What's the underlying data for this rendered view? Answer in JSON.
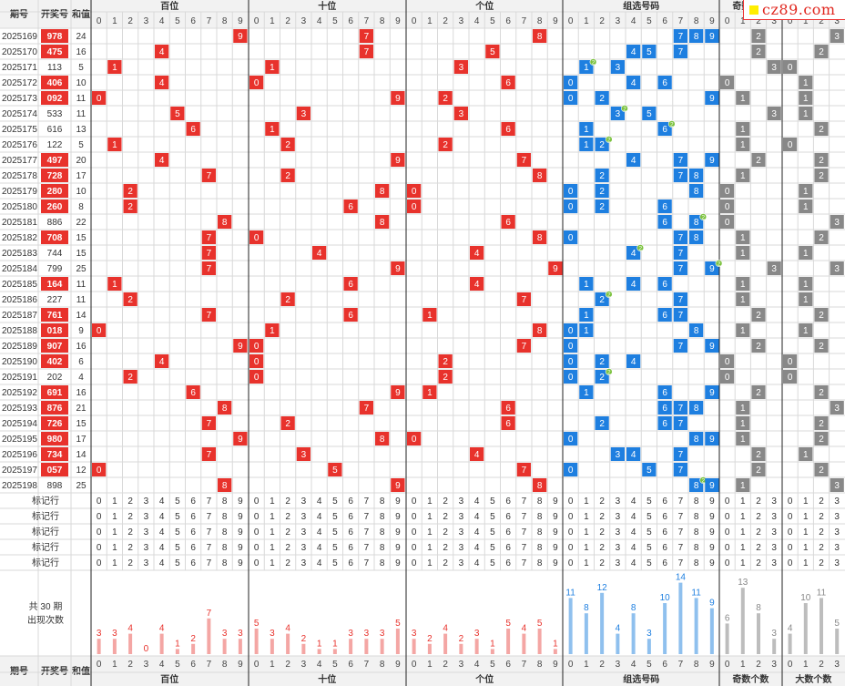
{
  "headers": {
    "issue": "期号",
    "number": "开奖号",
    "sum": "和值",
    "groups": [
      "百位",
      "十位",
      "个位",
      "组选号码",
      "奇数个数",
      "大数个数"
    ]
  },
  "digit_labels": [
    "0",
    "1",
    "2",
    "3",
    "4",
    "5",
    "6",
    "7",
    "8",
    "9"
  ],
  "count_labels": [
    "0",
    "1",
    "2",
    "3"
  ],
  "logo": {
    "text": "cz89.com"
  },
  "draws": [
    {
      "issue": "2025169",
      "number": "978",
      "sum": "24"
    },
    {
      "issue": "2025170",
      "number": "475",
      "sum": "16"
    },
    {
      "issue": "2025171",
      "number": "113",
      "sum": "5"
    },
    {
      "issue": "2025172",
      "number": "406",
      "sum": "10"
    },
    {
      "issue": "2025173",
      "number": "092",
      "sum": "11"
    },
    {
      "issue": "2025174",
      "number": "533",
      "sum": "11"
    },
    {
      "issue": "2025175",
      "number": "616",
      "sum": "13"
    },
    {
      "issue": "2025176",
      "number": "122",
      "sum": "5"
    },
    {
      "issue": "2025177",
      "number": "497",
      "sum": "20"
    },
    {
      "issue": "2025178",
      "number": "728",
      "sum": "17"
    },
    {
      "issue": "2025179",
      "number": "280",
      "sum": "10"
    },
    {
      "issue": "2025180",
      "number": "260",
      "sum": "8"
    },
    {
      "issue": "2025181",
      "number": "886",
      "sum": "22"
    },
    {
      "issue": "2025182",
      "number": "708",
      "sum": "15"
    },
    {
      "issue": "2025183",
      "number": "744",
      "sum": "15"
    },
    {
      "issue": "2025184",
      "number": "799",
      "sum": "25"
    },
    {
      "issue": "2025185",
      "number": "164",
      "sum": "11"
    },
    {
      "issue": "2025186",
      "number": "227",
      "sum": "11"
    },
    {
      "issue": "2025187",
      "number": "761",
      "sum": "14"
    },
    {
      "issue": "2025188",
      "number": "018",
      "sum": "9"
    },
    {
      "issue": "2025189",
      "number": "907",
      "sum": "16"
    },
    {
      "issue": "2025190",
      "number": "402",
      "sum": "6"
    },
    {
      "issue": "2025191",
      "number": "202",
      "sum": "4"
    },
    {
      "issue": "2025192",
      "number": "691",
      "sum": "16"
    },
    {
      "issue": "2025193",
      "number": "876",
      "sum": "21"
    },
    {
      "issue": "2025194",
      "number": "726",
      "sum": "15"
    },
    {
      "issue": "2025195",
      "number": "980",
      "sum": "17"
    },
    {
      "issue": "2025196",
      "number": "734",
      "sum": "14"
    },
    {
      "issue": "2025197",
      "number": "057",
      "sum": "12"
    },
    {
      "issue": "2025198",
      "number": "898",
      "sum": "25"
    }
  ],
  "marker_rows_label": "标记行",
  "marker_rows_count": 5,
  "stats_label_line1": "共 30 期",
  "stats_label_line2": "出现次数",
  "repeat_badge": "2",
  "stats": {
    "hundreds": [
      3,
      3,
      4,
      0,
      4,
      1,
      2,
      7,
      3,
      3
    ],
    "tens": [
      5,
      3,
      4,
      2,
      1,
      1,
      3,
      3,
      3,
      5
    ],
    "units": [
      3,
      2,
      4,
      2,
      3,
      1,
      5,
      4,
      5,
      1
    ],
    "group": [
      11,
      8,
      12,
      4,
      8,
      3,
      10,
      14,
      11,
      9
    ],
    "odd": [
      6,
      13,
      8,
      3
    ],
    "big": [
      4,
      10,
      11,
      5
    ]
  },
  "colors": {
    "hundreds_tens_units": "#e8322c",
    "group": "#1e7fe0",
    "count": "#888888",
    "stat_red": "#f4a6a4",
    "stat_blue": "#8fc0ee",
    "stat_gray": "#bdbdbd",
    "badge": "#7ac13c",
    "grid": "#d9d9d9",
    "header_bg": "#f2f2f2"
  }
}
